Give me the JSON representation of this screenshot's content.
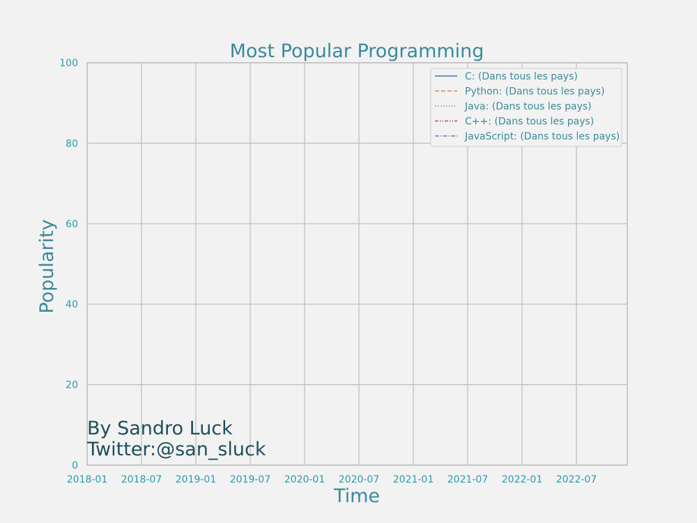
{
  "chart_data": {
    "type": "line",
    "title": "Most Popular Programming",
    "xlabel": "Time",
    "ylabel": "Popularity",
    "ylim": [
      0,
      100
    ],
    "yticks": [
      0,
      20,
      40,
      60,
      80,
      100
    ],
    "x_tick_labels": [
      "2018-01",
      "2018-07",
      "2019-01",
      "2019-07",
      "2020-01",
      "2020-07",
      "2021-01",
      "2021-07",
      "2022-01",
      "2022-07"
    ],
    "grid": true,
    "legend_position": "top-right",
    "series": [
      {
        "name": "C: (Dans tous les pays)",
        "color": "#4c72b0",
        "dash": "solid",
        "values": []
      },
      {
        "name": "Python: (Dans tous les pays)",
        "color": "#dd8452",
        "dash": "dashed",
        "values": []
      },
      {
        "name": "Java: (Dans tous les pays)",
        "color": "#55a868",
        "dash": "dotted",
        "values": []
      },
      {
        "name": "C++: (Dans tous les pays)",
        "color": "#c44e52",
        "dash": "dashdotdot",
        "values": []
      },
      {
        "name": "JavaScript: (Dans tous les pays)",
        "color": "#8172b3",
        "dash": "dashdot",
        "values": []
      }
    ],
    "annotation": [
      "By Sandro Luck",
      "Twitter:@san_sluck"
    ]
  },
  "colors": {
    "background": "#f2f2f2",
    "title": "#3a8a9a",
    "axis_label": "#3a8a9a",
    "tick_label": "#2a9ab0",
    "annotation": "#1f4f5c",
    "grid": "#bdbdbd",
    "legend_text": "#3a8a9a"
  }
}
